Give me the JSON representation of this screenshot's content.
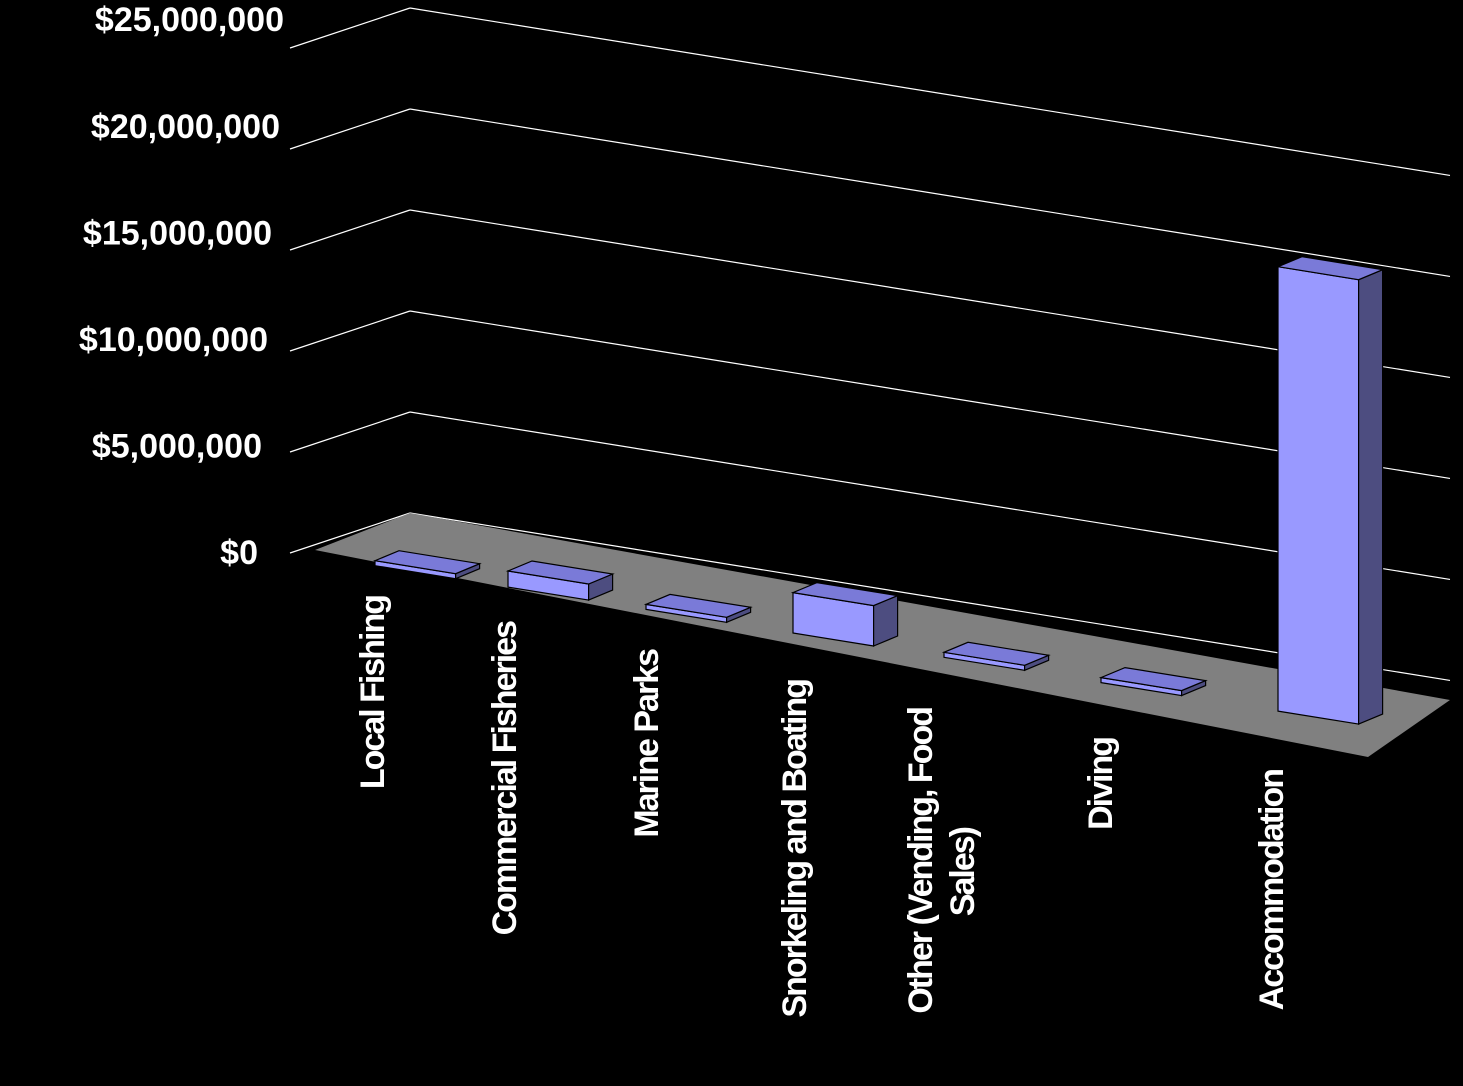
{
  "chart_data": {
    "type": "bar",
    "title": "",
    "xlabel": "",
    "ylabel": "",
    "categories": [
      "Local Fishing",
      "Commercial Fisheries",
      "Marine Parks",
      "Snorkeling and Boating",
      "Other (Vending, Food Sales)",
      "Diving",
      "Accommodation"
    ],
    "category_label_lines": [
      [
        "Local Fishing"
      ],
      [
        "Commercial Fisheries"
      ],
      [
        "Marine Parks"
      ],
      [
        "Snorkeling and Boating"
      ],
      [
        "Other (Vending, Food",
        "Sales)"
      ],
      [
        "Diving"
      ],
      [
        "Accommodation"
      ]
    ],
    "values": [
      150000,
      800000,
      100000,
      2000000,
      30000,
      200000,
      22000000
    ],
    "ylim": [
      0,
      25000000
    ],
    "yticks": [
      0,
      5000000,
      10000000,
      15000000,
      20000000,
      25000000
    ],
    "ytick_labels": [
      "$0",
      "$5,000,000",
      "$10,000,000",
      "$15,000,000",
      "$20,000,000",
      "$25,000,000"
    ],
    "grid": true,
    "legend": "none",
    "projection": "3d",
    "colors": {
      "background": "#000000",
      "bar_front": "#9999ff",
      "bar_top": "#7a7ad8",
      "bar_side": "#4d4d80",
      "floor": "#808080",
      "grid": "#ffffff",
      "text": "#ffffff"
    }
  }
}
